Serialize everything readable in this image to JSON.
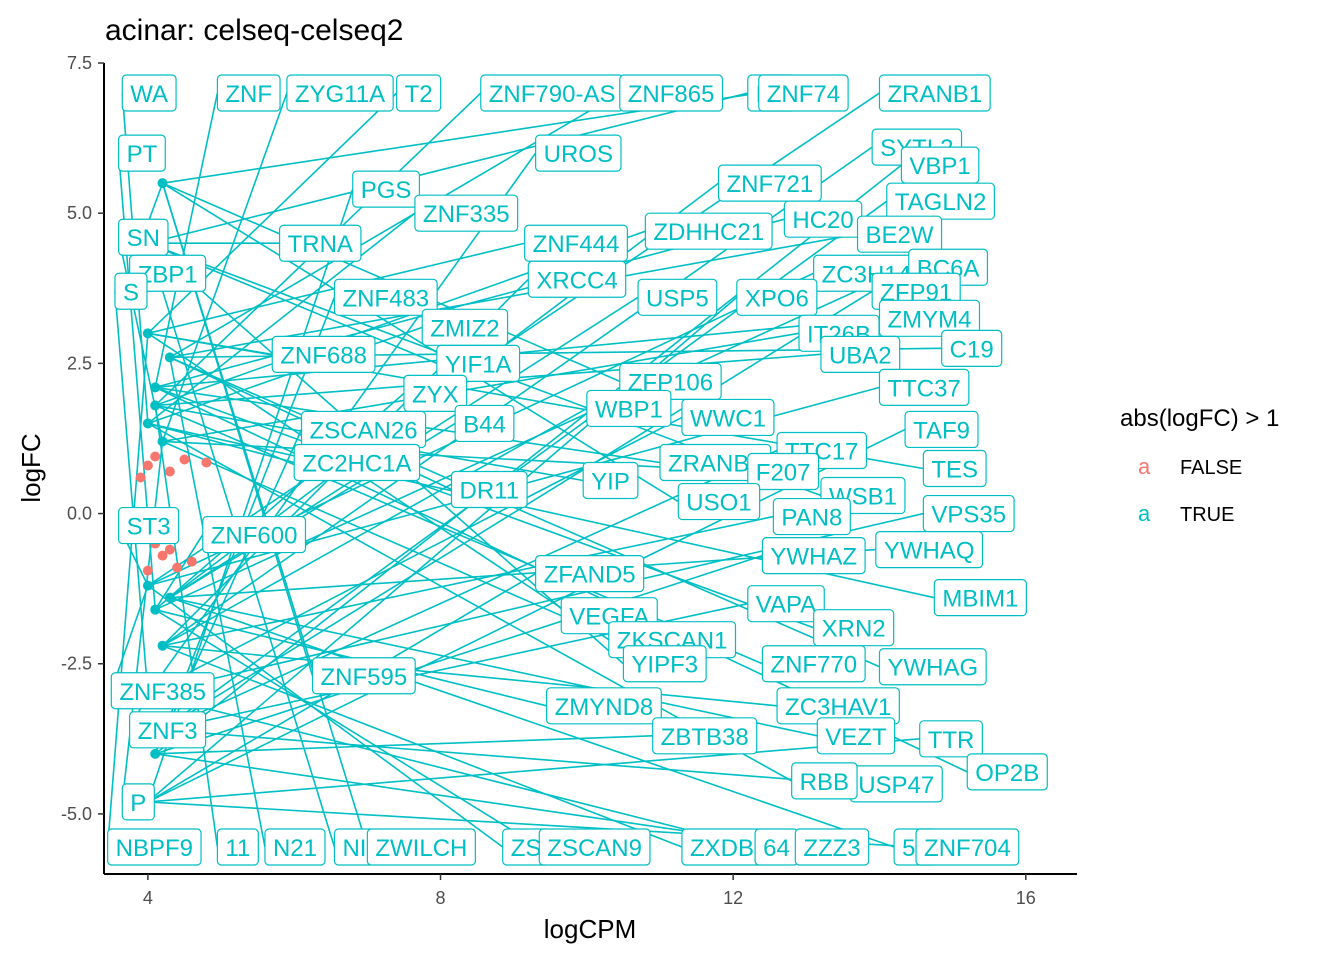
{
  "chart_data": {
    "type": "scatter",
    "title": "acinar: celseq-celseq2",
    "xlabel": "logCPM",
    "ylabel": "logFC",
    "xlim": [
      3.4,
      16.7
    ],
    "ylim": [
      -6.0,
      7.5
    ],
    "x_ticks": [
      4,
      8,
      12,
      16
    ],
    "x_tick_labels": [
      "4",
      "8",
      "12",
      "16"
    ],
    "y_ticks": [
      -5.0,
      -2.5,
      0.0,
      2.5,
      5.0,
      7.5
    ],
    "y_tick_labels": [
      "-5.0",
      "-2.5",
      "0.0",
      "2.5",
      "5.0",
      "7.5"
    ],
    "grid": false,
    "legend": {
      "title": "abs(logFC) > 1",
      "position": "right",
      "entries": [
        {
          "label": "FALSE",
          "color": "#F8766D",
          "key": "a"
        },
        {
          "label": "TRUE",
          "color": "#00BFC4",
          "key": "a"
        }
      ]
    },
    "colors": {
      "false": "#F8766D",
      "true": "#00BFC4"
    },
    "series": [
      {
        "name": "FALSE",
        "color": "#F8766D",
        "points": [
          {
            "x": 4.0,
            "y": 0.8
          },
          {
            "x": 4.1,
            "y": 0.95
          },
          {
            "x": 4.3,
            "y": 0.7
          },
          {
            "x": 4.5,
            "y": 0.9
          },
          {
            "x": 4.2,
            "y": -0.7
          },
          {
            "x": 4.4,
            "y": -0.9
          },
          {
            "x": 4.6,
            "y": -0.8
          },
          {
            "x": 4.0,
            "y": -0.95
          },
          {
            "x": 4.8,
            "y": 0.85
          },
          {
            "x": 4.3,
            "y": -0.6
          },
          {
            "x": 3.9,
            "y": 0.6
          },
          {
            "x": 4.1,
            "y": -0.5
          }
        ]
      },
      {
        "name": "TRUE",
        "color": "#00BFC4",
        "points": [
          {
            "x": 4.0,
            "y": 1.5
          },
          {
            "x": 4.1,
            "y": 2.1
          },
          {
            "x": 4.2,
            "y": 1.2
          },
          {
            "x": 4.0,
            "y": 3.0
          },
          {
            "x": 4.1,
            "y": 1.8
          },
          {
            "x": 4.3,
            "y": 2.6
          },
          {
            "x": 4.0,
            "y": 4.5
          },
          {
            "x": 4.2,
            "y": 5.5
          },
          {
            "x": 4.0,
            "y": -1.2
          },
          {
            "x": 4.1,
            "y": -1.6
          },
          {
            "x": 4.2,
            "y": -2.2
          },
          {
            "x": 4.0,
            "y": -3.0
          },
          {
            "x": 4.1,
            "y": -4.0
          },
          {
            "x": 4.3,
            "y": -1.4
          },
          {
            "x": 4.0,
            "y": -4.8
          },
          {
            "x": 4.2,
            "y": -3.6
          }
        ]
      }
    ],
    "gene_labels": [
      {
        "text": "WA",
        "x": 3.65,
        "y": 7.0
      },
      {
        "text": "ZNF",
        "x": 4.95,
        "y": 7.0
      },
      {
        "text": "ZYG11A",
        "x": 5.9,
        "y": 7.0
      },
      {
        "text": "T2",
        "x": 7.4,
        "y": 7.0
      },
      {
        "text": "ZNF790-AS",
        "x": 8.55,
        "y": 7.0
      },
      {
        "text": "ZNF865",
        "x": 10.45,
        "y": 7.0
      },
      {
        "text": "NF",
        "x": 12.2,
        "y": 7.0
      },
      {
        "text": "ZNF74",
        "x": 12.35,
        "y": 7.0
      },
      {
        "text": "ZRANB1",
        "x": 14.0,
        "y": 7.0
      },
      {
        "text": "PT",
        "x": 3.6,
        "y": 6.0
      },
      {
        "text": "SYTL2",
        "x": 13.9,
        "y": 6.1
      },
      {
        "text": "UROS",
        "x": 9.3,
        "y": 6.0
      },
      {
        "text": "VBP1",
        "x": 14.3,
        "y": 5.8
      },
      {
        "text": "ZNF721",
        "x": 11.8,
        "y": 5.5
      },
      {
        "text": "PGS",
        "x": 6.8,
        "y": 5.4
      },
      {
        "text": "TAGLN2",
        "x": 14.1,
        "y": 5.2
      },
      {
        "text": "ZNF335",
        "x": 7.65,
        "y": 5.0
      },
      {
        "text": "HC20",
        "x": 12.7,
        "y": 4.9
      },
      {
        "text": "SN",
        "x": 3.6,
        "y": 4.6
      },
      {
        "text": "ZNF444",
        "x": 9.15,
        "y": 4.5
      },
      {
        "text": "ZDHHC21",
        "x": 10.8,
        "y": 4.7
      },
      {
        "text": "BE2W",
        "x": 13.7,
        "y": 4.65
      },
      {
        "text": "TRNA",
        "x": 5.8,
        "y": 4.5
      },
      {
        "text": "ZBP1",
        "x": 3.75,
        "y": 4.0
      },
      {
        "text": "ZC3H14",
        "x": 13.1,
        "y": 4.0
      },
      {
        "text": "BC6A",
        "x": 14.4,
        "y": 4.1
      },
      {
        "text": "XRCC4",
        "x": 9.2,
        "y": 3.9
      },
      {
        "text": "S",
        "x": 3.55,
        "y": 3.7
      },
      {
        "text": "ZNF483",
        "x": 6.55,
        "y": 3.6
      },
      {
        "text": "USP5",
        "x": 10.7,
        "y": 3.6
      },
      {
        "text": "XPO6",
        "x": 12.05,
        "y": 3.6
      },
      {
        "text": "ZFP91",
        "x": 13.9,
        "y": 3.7
      },
      {
        "text": "ZMIZ2",
        "x": 7.75,
        "y": 3.1
      },
      {
        "text": "ZMYM4",
        "x": 14.0,
        "y": 3.25
      },
      {
        "text": "IT26B",
        "x": 12.9,
        "y": 3.0
      },
      {
        "text": "ZNF688",
        "x": 5.7,
        "y": 2.65
      },
      {
        "text": "UBA2",
        "x": 13.2,
        "y": 2.65
      },
      {
        "text": "C19",
        "x": 14.85,
        "y": 2.75
      },
      {
        "text": "YIF1A",
        "x": 7.95,
        "y": 2.5
      },
      {
        "text": "ZFP106",
        "x": 10.45,
        "y": 2.2
      },
      {
        "text": "TTC37",
        "x": 14.0,
        "y": 2.1
      },
      {
        "text": "ZYX",
        "x": 7.5,
        "y": 2.0
      },
      {
        "text": "WBP1",
        "x": 10.0,
        "y": 1.75
      },
      {
        "text": "WWC1",
        "x": 11.3,
        "y": 1.6
      },
      {
        "text": "ZSCAN26",
        "x": 6.1,
        "y": 1.4
      },
      {
        "text": "B44",
        "x": 8.2,
        "y": 1.5
      },
      {
        "text": "TAF9",
        "x": 14.35,
        "y": 1.4
      },
      {
        "text": "TTC17",
        "x": 12.6,
        "y": 1.05
      },
      {
        "text": "ZC2HC1A",
        "x": 6.0,
        "y": 0.85
      },
      {
        "text": "ZRANB2",
        "x": 11.0,
        "y": 0.85
      },
      {
        "text": "F207",
        "x": 12.2,
        "y": 0.7
      },
      {
        "text": "TES",
        "x": 14.6,
        "y": 0.75
      },
      {
        "text": "YIP",
        "x": 9.95,
        "y": 0.55
      },
      {
        "text": "DR11",
        "x": 8.15,
        "y": 0.4
      },
      {
        "text": "WSB1",
        "x": 13.2,
        "y": 0.3
      },
      {
        "text": "USO1",
        "x": 11.25,
        "y": 0.2
      },
      {
        "text": "ST3",
        "x": 3.6,
        "y": -0.2
      },
      {
        "text": "ZNF600",
        "x": 4.75,
        "y": -0.35
      },
      {
        "text": "PAN8",
        "x": 12.55,
        "y": -0.05
      },
      {
        "text": "VPS35",
        "x": 14.6,
        "y": 0.0
      },
      {
        "text": "YWHAZ",
        "x": 12.4,
        "y": -0.7
      },
      {
        "text": "YWHAQ",
        "x": 13.95,
        "y": -0.6
      },
      {
        "text": "ZFAND5",
        "x": 9.3,
        "y": -1.0
      },
      {
        "text": "VAPA",
        "x": 12.2,
        "y": -1.5
      },
      {
        "text": "MBIM1",
        "x": 14.75,
        "y": -1.4
      },
      {
        "text": "XRN2",
        "x": 13.1,
        "y": -1.9
      },
      {
        "text": "VEGFA",
        "x": 9.65,
        "y": -1.7
      },
      {
        "text": "ZKSCAN1",
        "x": 10.3,
        "y": -2.1
      },
      {
        "text": "ZNF770",
        "x": 12.4,
        "y": -2.5
      },
      {
        "text": "YWHAG",
        "x": 14.0,
        "y": -2.55
      },
      {
        "text": "YIPF3",
        "x": 10.5,
        "y": -2.5
      },
      {
        "text": "ZNF595",
        "x": 6.25,
        "y": -2.7
      },
      {
        "text": "ZNF385",
        "x": 3.5,
        "y": -2.95
      },
      {
        "text": "ZMYND8",
        "x": 9.45,
        "y": -3.2
      },
      {
        "text": "ZC3HAV1",
        "x": 12.6,
        "y": -3.2
      },
      {
        "text": "ZNF3",
        "x": 3.75,
        "y": -3.6
      },
      {
        "text": "ZBTB38",
        "x": 10.9,
        "y": -3.7
      },
      {
        "text": "VEZT",
        "x": 13.15,
        "y": -3.7
      },
      {
        "text": "TTR",
        "x": 14.55,
        "y": -3.75
      },
      {
        "text": "USP47",
        "x": 13.6,
        "y": -4.5
      },
      {
        "text": "RBB",
        "x": 12.8,
        "y": -4.45
      },
      {
        "text": "OP2B",
        "x": 15.2,
        "y": -4.3
      },
      {
        "text": "P",
        "x": 3.65,
        "y": -4.8
      },
      {
        "text": "NBPF9",
        "x": 3.45,
        "y": -5.55
      },
      {
        "text": "11",
        "x": 4.95,
        "y": -5.55
      },
      {
        "text": "N21",
        "x": 5.6,
        "y": -5.55
      },
      {
        "text": "NI",
        "x": 6.55,
        "y": -5.55
      },
      {
        "text": "ZWILCH",
        "x": 7.0,
        "y": -5.55
      },
      {
        "text": "ZS",
        "x": 8.85,
        "y": -5.55
      },
      {
        "text": "ZSCAN9",
        "x": 9.35,
        "y": -5.55
      },
      {
        "text": "ZXDB",
        "x": 11.3,
        "y": -5.55
      },
      {
        "text": "64",
        "x": 12.3,
        "y": -5.55
      },
      {
        "text": "ZZZ3",
        "x": 12.85,
        "y": -5.55
      },
      {
        "text": "51",
        "x": 14.2,
        "y": -5.55
      },
      {
        "text": "ZNF704",
        "x": 14.5,
        "y": -5.55
      }
    ]
  }
}
